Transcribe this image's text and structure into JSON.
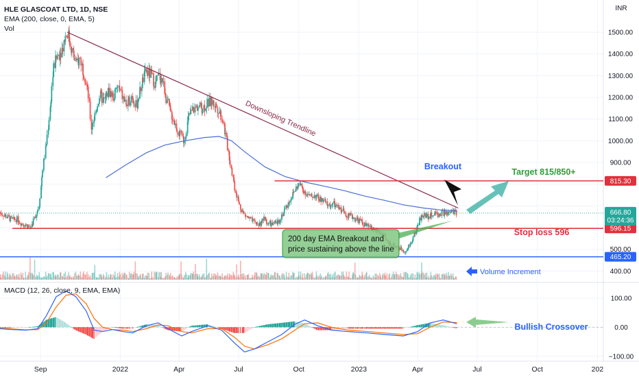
{
  "header": {
    "symbol": "HLE GLASCOAT LTD, 1D, NSE",
    "ema": "EMA (200, close, 0, EMA, 5)",
    "vol": "Vol",
    "macd": "MACD (12, 26, close, 9, EMA, EMA)",
    "currency": "INR"
  },
  "colors": {
    "up": "#26a69a",
    "down": "#ef5350",
    "ema": "#4a6fd4",
    "trendline": "#8b2a4a",
    "resistance": "#e0313d",
    "support_blue": "#2962ff",
    "macd_line": "#2962ff",
    "signal_line": "#ff6d00",
    "annotation_green": "#2e9e3a",
    "annotation_red": "#e0313d",
    "annotation_blue": "#2962ff"
  },
  "chart_data": [
    {
      "type": "candlestick",
      "title": "HLE GLASCOAT LTD, 1D, NSE",
      "ylabel": "INR",
      "ylim": [
        360,
        1560
      ],
      "y_ticks": [
        400,
        500,
        600,
        700,
        800,
        900,
        1000,
        1100,
        1200,
        1300,
        1400,
        1500
      ],
      "y_tick_labels": [
        "400.00",
        "500.00",
        "600.00",
        "700.00",
        "800.00",
        "900.00",
        "1000.00",
        "1100.00",
        "1200.00",
        "1300.00",
        "1400.00",
        "1500.00"
      ],
      "x_ticks": [
        "Sep",
        "2022",
        "Apr",
        "Jul",
        "Oct",
        "2023",
        "Apr",
        "Jul",
        "Oct",
        "202"
      ],
      "x_range": [
        "2021-07-01",
        "2024-01-10"
      ],
      "price_points": [
        [
          "2021-07-01",
          670
        ],
        [
          "2021-07-12",
          650
        ],
        [
          "2021-07-20",
          635
        ],
        [
          "2021-07-27",
          640
        ],
        [
          "2021-08-03",
          620
        ],
        [
          "2021-08-10",
          612
        ],
        [
          "2021-08-17",
          600
        ],
        [
          "2021-08-24",
          650
        ],
        [
          "2021-08-30",
          700
        ],
        [
          "2021-09-05",
          880
        ],
        [
          "2021-09-11",
          1000
        ],
        [
          "2021-09-16",
          1150
        ],
        [
          "2021-09-21",
          1330
        ],
        [
          "2021-09-27",
          1390
        ],
        [
          "2021-10-04",
          1420
        ],
        [
          "2021-10-09",
          1480
        ],
        [
          "2021-10-13",
          1500
        ],
        [
          "2021-10-19",
          1420
        ],
        [
          "2021-10-26",
          1350
        ],
        [
          "2021-11-01",
          1380
        ],
        [
          "2021-11-08",
          1300
        ],
        [
          "2021-11-14",
          1200
        ],
        [
          "2021-11-18",
          1060
        ],
        [
          "2021-11-23",
          1110
        ],
        [
          "2021-12-01",
          1210
        ],
        [
          "2021-12-08",
          1180
        ],
        [
          "2021-12-15",
          1230
        ],
        [
          "2021-12-22",
          1200
        ],
        [
          "2021-12-29",
          1250
        ],
        [
          "2022-01-05",
          1200
        ],
        [
          "2022-01-12",
          1160
        ],
        [
          "2022-01-19",
          1210
        ],
        [
          "2022-01-26",
          1160
        ],
        [
          "2022-02-03",
          1260
        ],
        [
          "2022-02-10",
          1320
        ],
        [
          "2022-02-18",
          1300
        ],
        [
          "2022-02-24",
          1260
        ],
        [
          "2022-03-01",
          1300
        ],
        [
          "2022-03-07",
          1280
        ],
        [
          "2022-03-11",
          1220
        ],
        [
          "2022-03-18",
          1140
        ],
        [
          "2022-03-26",
          1080
        ],
        [
          "2022-04-02",
          1030
        ],
        [
          "2022-04-09",
          1000
        ],
        [
          "2022-04-16",
          1110
        ],
        [
          "2022-04-22",
          1140
        ],
        [
          "2022-04-30",
          1160
        ],
        [
          "2022-05-07",
          1150
        ],
        [
          "2022-05-14",
          1170
        ],
        [
          "2022-05-21",
          1180
        ],
        [
          "2022-05-28",
          1160
        ],
        [
          "2022-06-02",
          1140
        ],
        [
          "2022-06-08",
          1090
        ],
        [
          "2022-06-13",
          1000
        ],
        [
          "2022-06-20",
          880
        ],
        [
          "2022-06-26",
          780
        ],
        [
          "2022-07-03",
          700
        ],
        [
          "2022-07-10",
          660
        ],
        [
          "2022-07-18",
          640
        ],
        [
          "2022-07-26",
          620
        ],
        [
          "2022-08-02",
          615
        ],
        [
          "2022-08-09",
          640
        ],
        [
          "2022-08-16",
          620
        ],
        [
          "2022-08-23",
          615
        ],
        [
          "2022-08-30",
          620
        ],
        [
          "2022-09-06",
          660
        ],
        [
          "2022-09-13",
          700
        ],
        [
          "2022-09-20",
          740
        ],
        [
          "2022-09-27",
          780
        ],
        [
          "2022-10-01",
          800
        ],
        [
          "2022-10-05",
          790
        ],
        [
          "2022-10-12",
          760
        ],
        [
          "2022-10-19",
          740
        ],
        [
          "2022-10-26",
          750
        ],
        [
          "2022-11-02",
          730
        ],
        [
          "2022-11-09",
          720
        ],
        [
          "2022-11-16",
          700
        ],
        [
          "2022-11-23",
          710
        ],
        [
          "2022-11-30",
          690
        ],
        [
          "2022-12-07",
          680
        ],
        [
          "2022-12-14",
          660
        ],
        [
          "2022-12-21",
          650
        ],
        [
          "2022-12-28",
          640
        ],
        [
          "2023-01-04",
          630
        ],
        [
          "2023-01-11",
          610
        ],
        [
          "2023-01-18",
          600
        ],
        [
          "2023-01-25",
          590
        ],
        [
          "2023-02-01",
          580
        ],
        [
          "2023-02-08",
          560
        ],
        [
          "2023-02-15",
          530
        ],
        [
          "2023-02-22",
          520
        ],
        [
          "2023-03-01",
          510
        ],
        [
          "2023-03-08",
          500
        ],
        [
          "2023-03-15",
          490
        ],
        [
          "2023-03-22",
          530
        ],
        [
          "2023-03-29",
          580
        ],
        [
          "2023-04-05",
          640
        ],
        [
          "2023-04-12",
          660
        ],
        [
          "2023-04-19",
          650
        ],
        [
          "2023-04-26",
          665
        ],
        [
          "2023-05-03",
          660
        ],
        [
          "2023-05-10",
          670
        ],
        [
          "2023-05-17",
          660
        ],
        [
          "2023-05-24",
          675
        ],
        [
          "2023-05-31",
          667
        ]
      ],
      "ema200_points": [
        [
          "2021-12-10",
          830
        ],
        [
          "2022-01-10",
          890
        ],
        [
          "2022-02-10",
          945
        ],
        [
          "2022-03-10",
          980
        ],
        [
          "2022-04-10",
          1000
        ],
        [
          "2022-05-10",
          1015
        ],
        [
          "2022-06-01",
          1020
        ],
        [
          "2022-06-20",
          1000
        ],
        [
          "2022-07-10",
          950
        ],
        [
          "2022-08-10",
          880
        ],
        [
          "2022-09-10",
          835
        ],
        [
          "2022-10-10",
          810
        ],
        [
          "2022-11-10",
          790
        ],
        [
          "2022-12-10",
          770
        ],
        [
          "2023-01-10",
          745
        ],
        [
          "2023-02-10",
          725
        ],
        [
          "2023-03-10",
          705
        ],
        [
          "2023-04-10",
          690
        ],
        [
          "2023-05-10",
          680
        ],
        [
          "2023-06-01",
          675
        ]
      ],
      "trendline": [
        [
          "2021-10-12",
          1500
        ],
        [
          "2023-06-02",
          690
        ]
      ],
      "horizontal_lines": [
        {
          "value": 815.3,
          "label": "815.30",
          "from": "2022-08-25"
        },
        {
          "value": 596.15,
          "label": "596.15",
          "from": "2021-07-20"
        },
        {
          "value": 465.2,
          "label": "465.20",
          "from": "2021-06-01"
        }
      ],
      "last_price": {
        "value": 666.8,
        "label": "666.80",
        "countdown": "03:24:36"
      },
      "annotations": {
        "downsloping": "Downsloping Trendline",
        "breakout": "Breakout",
        "target": "Target 815/850+",
        "stoploss": "Stop loss 596",
        "box_line1": "200 day EMA Breakout and",
        "box_line2": "price sustaining above the line",
        "volume_increment": "Volume Increment"
      }
    },
    {
      "type": "line",
      "title": "MACD (12, 26, close, 9, EMA, EMA)",
      "ylim": [
        -110,
        140
      ],
      "y_ticks": [
        -100,
        0,
        100
      ],
      "y_tick_labels": [
        "−100.00",
        "0.00",
        "100.00"
      ],
      "series": [
        {
          "values": [
            [
              "2021-07-01",
              -5
            ],
            [
              "2021-07-20",
              -8
            ],
            [
              "2021-08-10",
              -10
            ],
            [
              "2021-08-28",
              -5
            ],
            [
              "2021-09-10",
              40
            ],
            [
              "2021-09-25",
              105
            ],
            [
              "2021-10-10",
              125
            ],
            [
              "2021-10-25",
              105
            ],
            [
              "2021-11-10",
              55
            ],
            [
              "2021-11-22",
              -10
            ],
            [
              "2021-12-05",
              -15
            ],
            [
              "2021-12-20",
              -8
            ],
            [
              "2022-01-05",
              -15
            ],
            [
              "2022-01-20",
              -20
            ],
            [
              "2022-02-10",
              5
            ],
            [
              "2022-02-28",
              15
            ],
            [
              "2022-03-15",
              -5
            ],
            [
              "2022-04-05",
              -30
            ],
            [
              "2022-04-20",
              -15
            ],
            [
              "2022-05-15",
              5
            ],
            [
              "2022-06-05",
              -10
            ],
            [
              "2022-06-25",
              -55
            ],
            [
              "2022-07-10",
              -85
            ],
            [
              "2022-07-25",
              -75
            ],
            [
              "2022-08-15",
              -50
            ],
            [
              "2022-09-05",
              -25
            ],
            [
              "2022-09-25",
              10
            ],
            [
              "2022-10-10",
              25
            ],
            [
              "2022-10-30",
              5
            ],
            [
              "2022-11-20",
              -10
            ],
            [
              "2022-12-15",
              -15
            ],
            [
              "2023-01-15",
              -20
            ],
            [
              "2023-02-10",
              -25
            ],
            [
              "2023-03-10",
              -30
            ],
            [
              "2023-04-01",
              -15
            ],
            [
              "2023-04-20",
              15
            ],
            [
              "2023-05-10",
              25
            ],
            [
              "2023-05-31",
              12
            ]
          ]
        },
        {
          "values": [
            [
              "2021-07-01",
              -3
            ],
            [
              "2021-07-20",
              -6
            ],
            [
              "2021-08-10",
              -9
            ],
            [
              "2021-08-28",
              -8
            ],
            [
              "2021-09-10",
              15
            ],
            [
              "2021-09-25",
              70
            ],
            [
              "2021-10-10",
              110
            ],
            [
              "2021-10-25",
              115
            ],
            [
              "2021-11-10",
              80
            ],
            [
              "2021-11-22",
              30
            ],
            [
              "2021-12-05",
              0
            ],
            [
              "2021-12-20",
              -8
            ],
            [
              "2022-01-05",
              -10
            ],
            [
              "2022-01-20",
              -15
            ],
            [
              "2022-02-10",
              -5
            ],
            [
              "2022-02-28",
              8
            ],
            [
              "2022-03-15",
              5
            ],
            [
              "2022-04-05",
              -15
            ],
            [
              "2022-04-20",
              -20
            ],
            [
              "2022-05-15",
              -5
            ],
            [
              "2022-06-05",
              -5
            ],
            [
              "2022-06-25",
              -35
            ],
            [
              "2022-07-10",
              -65
            ],
            [
              "2022-07-25",
              -75
            ],
            [
              "2022-08-15",
              -60
            ],
            [
              "2022-09-05",
              -40
            ],
            [
              "2022-09-25",
              -10
            ],
            [
              "2022-10-10",
              12
            ],
            [
              "2022-10-30",
              15
            ],
            [
              "2022-11-20",
              0
            ],
            [
              "2022-12-15",
              -10
            ],
            [
              "2023-01-15",
              -15
            ],
            [
              "2023-02-10",
              -20
            ],
            [
              "2023-03-10",
              -25
            ],
            [
              "2023-04-01",
              -22
            ],
            [
              "2023-04-20",
              0
            ],
            [
              "2023-05-10",
              18
            ],
            [
              "2023-05-31",
              16
            ]
          ]
        }
      ],
      "annotations": {
        "crossover": "Bullish Crossover"
      }
    }
  ]
}
